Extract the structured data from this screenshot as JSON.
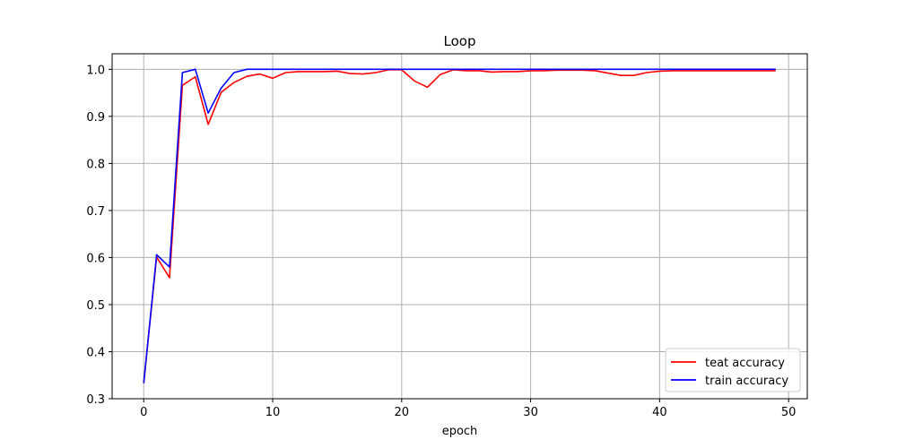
{
  "chart_data": {
    "type": "line",
    "title": "Loop",
    "xlabel": "epoch",
    "ylabel": "",
    "xlim": [
      -2.45,
      51.45
    ],
    "ylim": [
      0.3,
      1.033
    ],
    "xticks": [
      0,
      10,
      20,
      30,
      40,
      50
    ],
    "yticks": [
      0.3,
      0.4,
      0.5,
      0.6,
      0.7,
      0.8,
      0.9,
      1.0
    ],
    "xtick_labels": [
      "0",
      "10",
      "20",
      "30",
      "40",
      "50"
    ],
    "ytick_labels": [
      "0.3",
      "0.4",
      "0.5",
      "0.6",
      "0.7",
      "0.8",
      "0.9",
      "1.0"
    ],
    "grid": true,
    "legend_position": "bottom-right",
    "x": [
      0,
      1,
      2,
      3,
      4,
      5,
      6,
      7,
      8,
      9,
      10,
      11,
      12,
      13,
      14,
      15,
      16,
      17,
      18,
      19,
      20,
      21,
      22,
      23,
      24,
      25,
      26,
      27,
      28,
      29,
      30,
      31,
      32,
      33,
      34,
      35,
      36,
      37,
      38,
      39,
      40,
      41,
      42,
      43,
      44,
      45,
      46,
      47,
      48,
      49
    ],
    "series": [
      {
        "name": "teat accuracy",
        "color": "#ff0000",
        "values": [
          0.333,
          0.601,
          0.557,
          0.966,
          0.984,
          0.883,
          0.951,
          0.972,
          0.985,
          0.99,
          0.981,
          0.993,
          0.995,
          0.995,
          0.995,
          0.996,
          0.991,
          0.99,
          0.993,
          0.999,
          0.999,
          0.975,
          0.962,
          0.989,
          0.999,
          0.997,
          0.997,
          0.994,
          0.995,
          0.995,
          0.997,
          0.997,
          0.998,
          0.998,
          0.998,
          0.997,
          0.992,
          0.987,
          0.987,
          0.993,
          0.996,
          0.997,
          0.997,
          0.997,
          0.997,
          0.997,
          0.997,
          0.997,
          0.997,
          0.997
        ]
      },
      {
        "name": "train accuracy",
        "color": "#0000ff",
        "values": [
          0.333,
          0.606,
          0.58,
          0.993,
          1.0,
          0.907,
          0.96,
          0.993,
          1.0,
          1.0,
          1.0,
          1.0,
          1.0,
          1.0,
          1.0,
          1.0,
          1.0,
          1.0,
          1.0,
          1.0,
          1.0,
          1.0,
          1.0,
          1.0,
          1.0,
          1.0,
          1.0,
          1.0,
          1.0,
          1.0,
          1.0,
          1.0,
          1.0,
          1.0,
          1.0,
          1.0,
          1.0,
          1.0,
          1.0,
          1.0,
          1.0,
          1.0,
          1.0,
          1.0,
          1.0,
          1.0,
          1.0,
          1.0,
          1.0,
          1.0
        ]
      }
    ]
  }
}
